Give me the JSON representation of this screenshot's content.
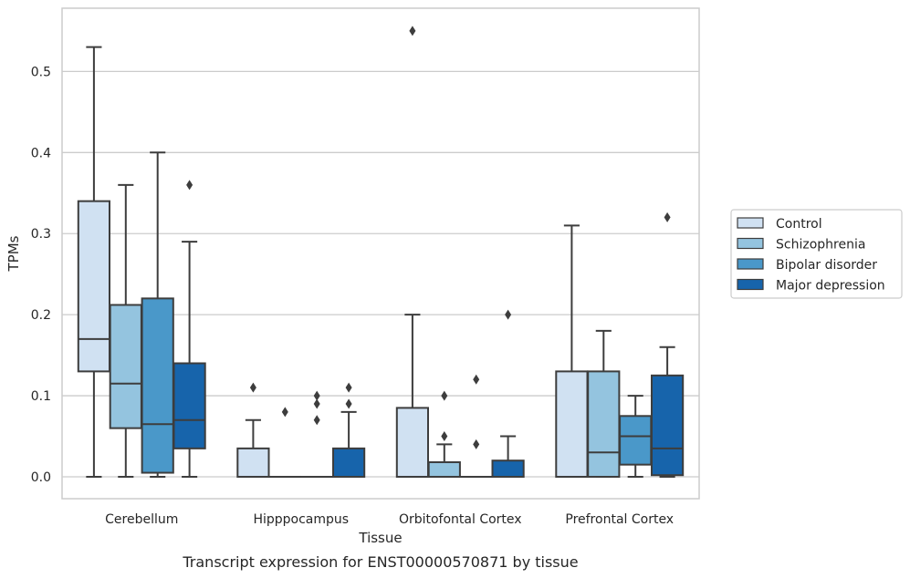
{
  "chart_data": {
    "type": "box",
    "title": "",
    "caption": "Transcript expression for ENST00000570871 by tissue",
    "xlabel": "Tissue",
    "ylabel": "TPMs",
    "ylim": [
      -0.027,
      0.578
    ],
    "yticks": [
      0.0,
      0.1,
      0.2,
      0.3,
      0.4,
      0.5
    ],
    "ytick_labels": [
      "0.0",
      "0.1",
      "0.2",
      "0.3",
      "0.4",
      "0.5"
    ],
    "grid": true,
    "legend_position": "right",
    "categories": [
      "Cerebellum",
      "Hipppocampus",
      "Orbitofontal Cortex",
      "Prefrontal Cortex"
    ],
    "series": [
      {
        "name": "Control",
        "color": "#d0e1f2",
        "boxes": [
          {
            "whisker_low": 0.0,
            "q1": 0.13,
            "median": 0.17,
            "q3": 0.34,
            "whisker_high": 0.53,
            "outliers": []
          },
          {
            "whisker_low": 0.0,
            "q1": 0.0,
            "median": 0.0,
            "q3": 0.035,
            "whisker_high": 0.07,
            "outliers": [
              0.11
            ]
          },
          {
            "whisker_low": 0.0,
            "q1": 0.0,
            "median": 0.0,
            "q3": 0.085,
            "whisker_high": 0.2,
            "outliers": [
              0.55
            ]
          },
          {
            "whisker_low": 0.0,
            "q1": 0.0,
            "median": 0.0,
            "q3": 0.13,
            "whisker_high": 0.31,
            "outliers": []
          }
        ]
      },
      {
        "name": "Schizophrenia",
        "color": "#94c4df",
        "boxes": [
          {
            "whisker_low": 0.0,
            "q1": 0.06,
            "median": 0.115,
            "q3": 0.212,
            "whisker_high": 0.36,
            "outliers": []
          },
          {
            "whisker_low": 0.0,
            "q1": 0.0,
            "median": 0.0,
            "q3": 0.0,
            "whisker_high": 0.0,
            "outliers": [
              0.08
            ]
          },
          {
            "whisker_low": 0.0,
            "q1": 0.0,
            "median": 0.0,
            "q3": 0.018,
            "whisker_high": 0.04,
            "outliers": [
              0.05,
              0.1
            ]
          },
          {
            "whisker_low": 0.0,
            "q1": 0.0,
            "median": 0.03,
            "q3": 0.13,
            "whisker_high": 0.18,
            "outliers": []
          }
        ]
      },
      {
        "name": "Bipolar disorder",
        "color": "#4a98c9",
        "boxes": [
          {
            "whisker_low": 0.0,
            "q1": 0.005,
            "median": 0.065,
            "q3": 0.22,
            "whisker_high": 0.4,
            "outliers": []
          },
          {
            "whisker_low": 0.0,
            "q1": 0.0,
            "median": 0.0,
            "q3": 0.0,
            "whisker_high": 0.0,
            "outliers": [
              0.07,
              0.09,
              0.1
            ]
          },
          {
            "whisker_low": 0.0,
            "q1": 0.0,
            "median": 0.0,
            "q3": 0.0,
            "whisker_high": 0.0,
            "outliers": [
              0.04,
              0.12
            ]
          },
          {
            "whisker_low": 0.0,
            "q1": 0.015,
            "median": 0.05,
            "q3": 0.075,
            "whisker_high": 0.1,
            "outliers": []
          }
        ]
      },
      {
        "name": "Major depression",
        "color": "#1764ab",
        "boxes": [
          {
            "whisker_low": 0.0,
            "q1": 0.035,
            "median": 0.07,
            "q3": 0.14,
            "whisker_high": 0.29,
            "outliers": [
              0.36
            ]
          },
          {
            "whisker_low": 0.0,
            "q1": 0.0,
            "median": 0.0,
            "q3": 0.035,
            "whisker_high": 0.08,
            "outliers": [
              0.09,
              0.11
            ]
          },
          {
            "whisker_low": 0.0,
            "q1": 0.0,
            "median": 0.0,
            "q3": 0.02,
            "whisker_high": 0.05,
            "outliers": [
              0.2
            ]
          },
          {
            "whisker_low": 0.0,
            "q1": 0.002,
            "median": 0.035,
            "q3": 0.125,
            "whisker_high": 0.16,
            "outliers": [
              0.32
            ]
          }
        ]
      }
    ]
  }
}
